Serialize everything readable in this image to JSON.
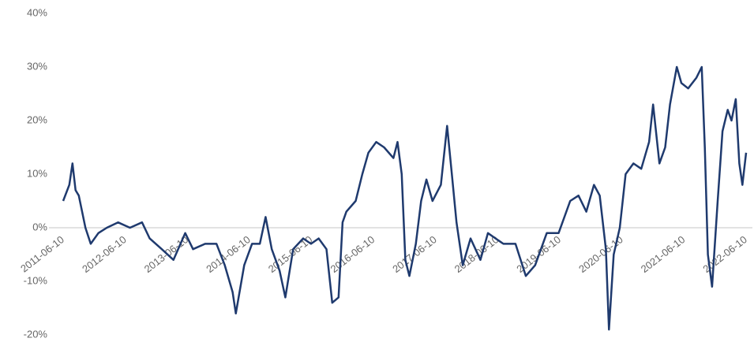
{
  "chart_data": {
    "type": "line",
    "x": [
      "2011-06-10",
      "2011-07-16",
      "2011-08-04",
      "2011-08-22",
      "2011-09-10",
      "2011-10-19",
      "2011-11-19",
      "2012-01-03",
      "2012-02-22",
      "2012-04-28",
      "2012-07-07",
      "2012-09-16",
      "2012-10-31",
      "2013-01-10",
      "2013-03-20",
      "2013-05-28",
      "2013-07-13",
      "2013-09-22",
      "2013-11-28",
      "2014-01-16",
      "2014-03-03",
      "2014-03-22",
      "2014-05-10",
      "2014-06-25",
      "2014-08-10",
      "2014-09-13",
      "2014-10-19",
      "2014-12-04",
      "2015-01-07",
      "2015-02-22",
      "2015-04-22",
      "2015-06-07",
      "2015-07-22",
      "2015-09-06",
      "2015-10-10",
      "2015-11-16",
      "2015-12-10",
      "2016-01-01",
      "2016-02-25",
      "2016-04-04",
      "2016-05-10",
      "2016-06-25",
      "2016-08-10",
      "2016-10-04",
      "2016-10-28",
      "2016-11-22",
      "2016-12-13",
      "2017-01-06",
      "2017-02-13",
      "2017-03-16",
      "2017-04-16",
      "2017-05-22",
      "2017-07-10",
      "2017-08-16",
      "2017-09-13",
      "2017-10-10",
      "2017-11-16",
      "2018-01-01",
      "2018-02-28",
      "2018-04-13",
      "2018-05-28",
      "2018-07-13",
      "2018-09-22",
      "2018-11-22",
      "2019-01-16",
      "2019-03-25",
      "2019-06-03",
      "2019-08-10",
      "2019-09-28",
      "2019-11-13",
      "2019-12-28",
      "2020-01-31",
      "2020-03-07",
      "2020-03-25",
      "2020-04-22",
      "2020-05-28",
      "2020-07-01",
      "2020-08-16",
      "2020-10-01",
      "2020-11-16",
      "2020-12-10",
      "2021-01-16",
      "2021-02-19",
      "2021-03-19",
      "2021-04-28",
      "2021-05-25",
      "2021-07-04",
      "2021-08-22",
      "2021-09-22",
      "2021-10-10",
      "2021-10-28",
      "2021-11-22",
      "2021-12-25",
      "2022-01-22",
      "2022-02-22",
      "2022-03-16",
      "2022-04-10",
      "2022-05-01",
      "2022-05-19",
      "2022-06-10"
    ],
    "series": [
      {
        "color": "#1f3a6e",
        "values": [
          5,
          8,
          12,
          7,
          6,
          0,
          -3,
          -1,
          0,
          1,
          0,
          1,
          -2,
          -4,
          -6,
          -1,
          -4,
          -3,
          -3,
          -7,
          -12,
          -16,
          -7,
          -3,
          -3,
          2,
          -4,
          -8,
          -13,
          -4,
          -2,
          -3,
          -2,
          -4,
          -14,
          -13,
          1,
          3,
          5,
          10,
          14,
          16,
          15,
          13,
          16,
          10,
          -6,
          -9,
          -3,
          5,
          9,
          5,
          8,
          19,
          10,
          1,
          -7,
          -2,
          -6,
          -1,
          -2,
          -3,
          -3,
          -9,
          -7,
          -1,
          -1,
          5,
          6,
          3,
          8,
          6,
          -4,
          -19,
          -5,
          0,
          10,
          12,
          11,
          16,
          23,
          12,
          15,
          23,
          30,
          27,
          26,
          28,
          30,
          15,
          -5,
          -11,
          5,
          18,
          22,
          20,
          24,
          12,
          8,
          14
        ]
      }
    ],
    "xlim": [
      "2011-06-10",
      "2022-06-10"
    ],
    "xticks": [
      "2011-06-10",
      "2012-06-10",
      "2013-06-10",
      "2014-06-10",
      "2015-06-10",
      "2016-06-10",
      "2017-06-10",
      "2018-06-10",
      "2019-06-10",
      "2020-06-10",
      "2021-06-10",
      "2022-06-10"
    ],
    "ylim": [
      -20,
      40
    ],
    "yticks": [
      {
        "value": -20,
        "label": "-20%"
      },
      {
        "value": -10,
        "label": "-10%"
      },
      {
        "value": 0,
        "label": "0%"
      },
      {
        "value": 10,
        "label": "10%"
      },
      {
        "value": 20,
        "label": "20%"
      },
      {
        "value": 30,
        "label": "30%"
      },
      {
        "value": 40,
        "label": "40%"
      }
    ]
  }
}
